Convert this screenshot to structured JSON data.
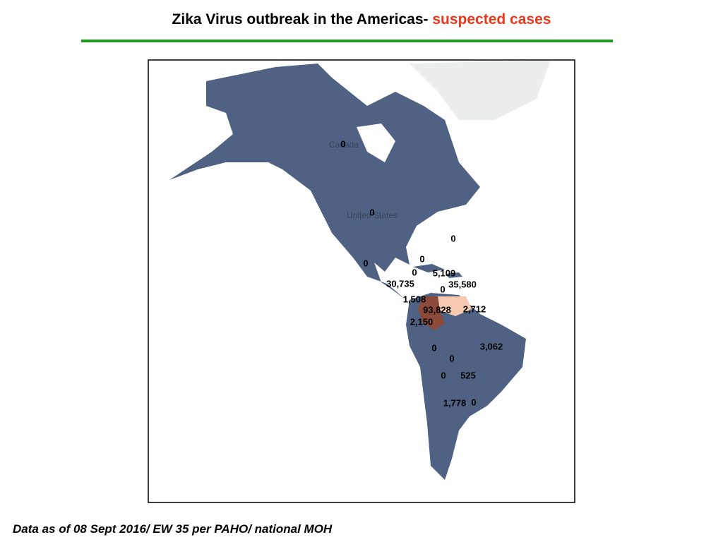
{
  "header": {
    "title": "Zika Virus outbreak in the Americas-",
    "highlight": "suspected cases"
  },
  "map": {
    "base_labels": [
      "Canada",
      "United States"
    ],
    "case_labels": [
      "0",
      "0",
      "0",
      "0",
      "0",
      "0",
      "5,109",
      "30,735",
      "35,580",
      "0",
      "1,508",
      "93,828",
      "2,712",
      "2,150",
      "0",
      "3,062",
      "0",
      "0",
      "525",
      "1,778",
      "0"
    ]
  },
  "footer": "Data as of 08 Sept 2016/ EW 35 per PAHO/ national MOH"
}
